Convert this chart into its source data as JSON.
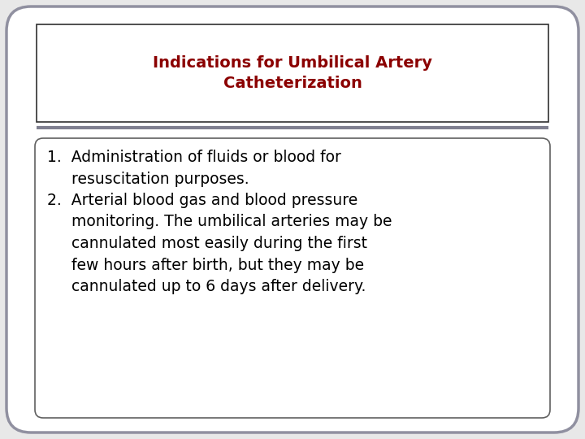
{
  "title_line1": "Indications for Umbilical Artery",
  "title_line2": "Catheterization",
  "title_color": "#8B0000",
  "title_fontsize": 14,
  "title_fontweight": "bold",
  "body_text_line1": "1.  Administration of fluids or blood for\n     resuscitation purposes.",
  "body_text_line2": "2.  Arterial blood gas and blood pressure\n     monitoring. The umbilical arteries may be\n     cannulated most easily during the first\n     few hours after birth, but they may be\n     cannulated up to 6 days after delivery.",
  "body_fontsize": 13.5,
  "body_color": "#000000",
  "background_color": "#e8e8e8",
  "outer_box_edgecolor": "#9090a0",
  "outer_box_facecolor": "#ffffff",
  "title_box_edgecolor": "#303030",
  "title_box_facecolor": "#ffffff",
  "body_box_edgecolor": "#606060",
  "body_box_facecolor": "#ffffff",
  "separator_color": "#808090",
  "separator_linewidth": 3.0,
  "outer_linewidth": 2.5,
  "title_linewidth": 1.2,
  "body_linewidth": 1.2
}
